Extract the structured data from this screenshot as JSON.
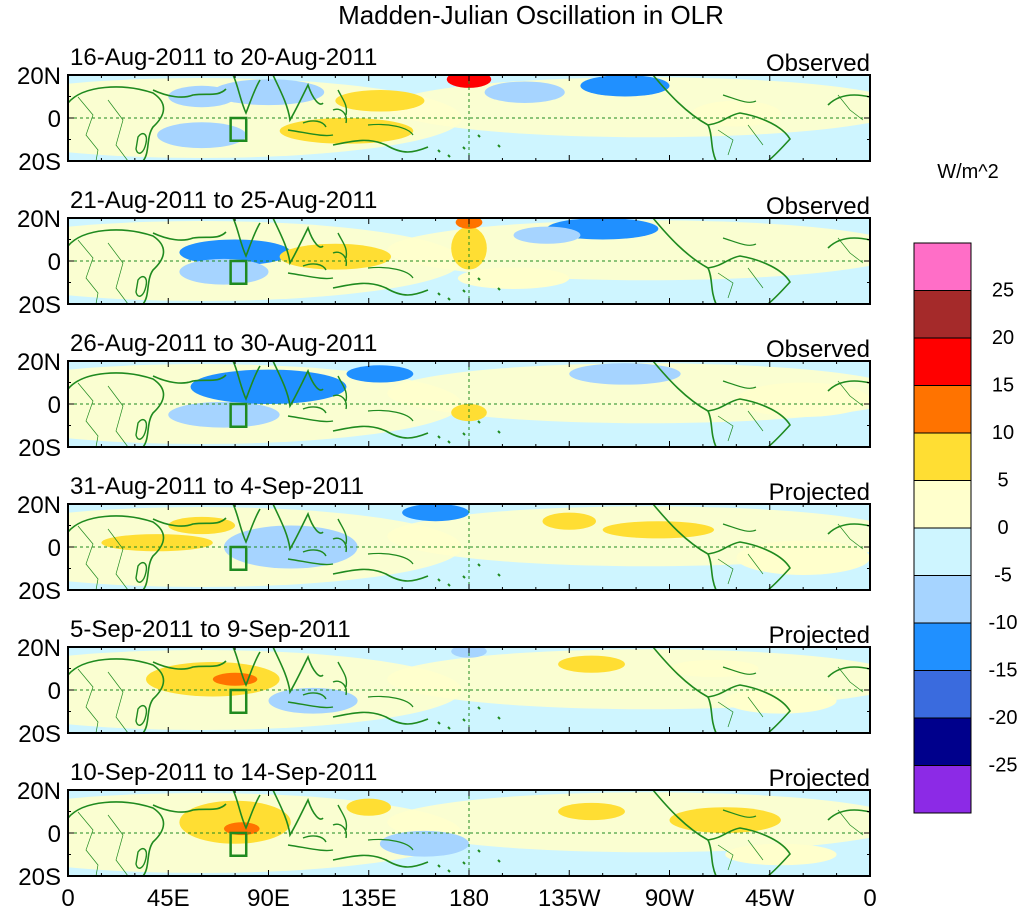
{
  "chart_data": {
    "type": "heatmap",
    "title": "Madden-Julian Oscillation in OLR",
    "units_label": "W/m^2",
    "x_ticks": [
      "0",
      "45E",
      "90E",
      "135E",
      "180",
      "135W",
      "90W",
      "45W",
      "0"
    ],
    "y_ticks": [
      "20N",
      "0",
      "20S"
    ],
    "ylim": [
      -20,
      20
    ],
    "xlim": [
      0,
      360
    ],
    "colorbar": {
      "levels": [
        "25",
        "20",
        "15",
        "10",
        "5",
        "0",
        "-5",
        "-10",
        "-15",
        "-20",
        "-25"
      ],
      "colors": [
        "#ff6ec7",
        "#a52a2a",
        "#ff0000",
        "#ff7300",
        "#ffde33",
        "#ffffcc",
        "#cef5ff",
        "#a6d4ff",
        "#2090ff",
        "#3a6bde",
        "#00008c",
        "#8c2ae6"
      ]
    },
    "colors": {
      "coast": "#1f8a1f",
      "box": "#1f8a1f",
      "grid": "#1f8a1f",
      "frame": "#000000"
    },
    "panels": [
      {
        "date_range": "16-Aug-2011 to 20-Aug-2011",
        "type": "Observed",
        "anomalies": [
          {
            "lon": 90,
            "lat": 12,
            "rx": 25,
            "ry": 6,
            "v": -6
          },
          {
            "lon": 60,
            "lat": 10,
            "rx": 15,
            "ry": 5,
            "v": -5
          },
          {
            "lon": 125,
            "lat": -6,
            "rx": 30,
            "ry": 6,
            "v": 6
          },
          {
            "lon": 140,
            "lat": 8,
            "rx": 20,
            "ry": 5,
            "v": 6
          },
          {
            "lon": 180,
            "lat": 18,
            "rx": 10,
            "ry": 4,
            "v": 16
          },
          {
            "lon": 205,
            "lat": 12,
            "rx": 18,
            "ry": 5,
            "v": -5
          },
          {
            "lon": 250,
            "lat": 15,
            "rx": 20,
            "ry": 5,
            "v": -12
          },
          {
            "lon": 300,
            "lat": 2,
            "rx": 20,
            "ry": 6,
            "v": 5
          },
          {
            "lon": 60,
            "lat": -8,
            "rx": 20,
            "ry": 6,
            "v": -5
          }
        ]
      },
      {
        "date_range": "21-Aug-2011 to 25-Aug-2011",
        "type": "Observed",
        "anomalies": [
          {
            "lon": 75,
            "lat": 4,
            "rx": 25,
            "ry": 6,
            "v": -12
          },
          {
            "lon": 70,
            "lat": -5,
            "rx": 20,
            "ry": 6,
            "v": -8
          },
          {
            "lon": 120,
            "lat": 2,
            "rx": 25,
            "ry": 6,
            "v": 6
          },
          {
            "lon": 180,
            "lat": 6,
            "rx": 8,
            "ry": 10,
            "v": 6
          },
          {
            "lon": 180,
            "lat": 18,
            "rx": 6,
            "ry": 3,
            "v": 12
          },
          {
            "lon": 240,
            "lat": 15,
            "rx": 25,
            "ry": 5,
            "v": -12
          },
          {
            "lon": 215,
            "lat": 12,
            "rx": 15,
            "ry": 4,
            "v": -6
          },
          {
            "lon": 200,
            "lat": -8,
            "rx": 25,
            "ry": 5,
            "v": 3
          }
        ]
      },
      {
        "date_range": "26-Aug-2011 to 30-Aug-2011",
        "type": "Observed",
        "anomalies": [
          {
            "lon": 90,
            "lat": 8,
            "rx": 35,
            "ry": 8,
            "v": -12
          },
          {
            "lon": 70,
            "lat": -5,
            "rx": 25,
            "ry": 6,
            "v": -7
          },
          {
            "lon": 140,
            "lat": 14,
            "rx": 15,
            "ry": 4,
            "v": -14
          },
          {
            "lon": 180,
            "lat": -4,
            "rx": 8,
            "ry": 4,
            "v": 6
          },
          {
            "lon": 250,
            "lat": 14,
            "rx": 25,
            "ry": 5,
            "v": -8
          },
          {
            "lon": 330,
            "lat": 2,
            "rx": 30,
            "ry": 8,
            "v": 2
          }
        ]
      },
      {
        "date_range": "31-Aug-2011 to 4-Sep-2011",
        "type": "Projected",
        "anomalies": [
          {
            "lon": 40,
            "lat": 2,
            "rx": 25,
            "ry": 4,
            "v": 6
          },
          {
            "lon": 60,
            "lat": 10,
            "rx": 15,
            "ry": 4,
            "v": 6
          },
          {
            "lon": 100,
            "lat": 0,
            "rx": 30,
            "ry": 10,
            "v": -7
          },
          {
            "lon": 165,
            "lat": 16,
            "rx": 15,
            "ry": 4,
            "v": -10
          },
          {
            "lon": 225,
            "lat": 12,
            "rx": 12,
            "ry": 4,
            "v": 6
          },
          {
            "lon": 265,
            "lat": 8,
            "rx": 25,
            "ry": 4,
            "v": 6
          },
          {
            "lon": 330,
            "lat": -5,
            "rx": 30,
            "ry": 8,
            "v": 2
          }
        ]
      },
      {
        "date_range": "5-Sep-2011 to 9-Sep-2011",
        "type": "Projected",
        "anomalies": [
          {
            "lon": 65,
            "lat": 5,
            "rx": 30,
            "ry": 8,
            "v": 7
          },
          {
            "lon": 75,
            "lat": 5,
            "rx": 10,
            "ry": 3,
            "v": 12
          },
          {
            "lon": 110,
            "lat": -5,
            "rx": 20,
            "ry": 6,
            "v": -6
          },
          {
            "lon": 180,
            "lat": 18,
            "rx": 8,
            "ry": 3,
            "v": -8
          },
          {
            "lon": 235,
            "lat": 12,
            "rx": 15,
            "ry": 4,
            "v": 6
          },
          {
            "lon": 290,
            "lat": 10,
            "rx": 20,
            "ry": 4,
            "v": 5
          },
          {
            "lon": 320,
            "lat": -5,
            "rx": 25,
            "ry": 6,
            "v": 2
          }
        ]
      },
      {
        "date_range": "10-Sep-2011 to 14-Sep-2011",
        "type": "Projected",
        "anomalies": [
          {
            "lon": 75,
            "lat": 5,
            "rx": 25,
            "ry": 10,
            "v": 7
          },
          {
            "lon": 78,
            "lat": 2,
            "rx": 8,
            "ry": 3,
            "v": 13
          },
          {
            "lon": 135,
            "lat": 12,
            "rx": 10,
            "ry": 4,
            "v": 6
          },
          {
            "lon": 160,
            "lat": -5,
            "rx": 20,
            "ry": 6,
            "v": -5
          },
          {
            "lon": 235,
            "lat": 10,
            "rx": 15,
            "ry": 4,
            "v": 6
          },
          {
            "lon": 295,
            "lat": 6,
            "rx": 25,
            "ry": 6,
            "v": 6
          },
          {
            "lon": 320,
            "lat": -10,
            "rx": 25,
            "ry": 5,
            "v": 2
          }
        ]
      }
    ]
  }
}
